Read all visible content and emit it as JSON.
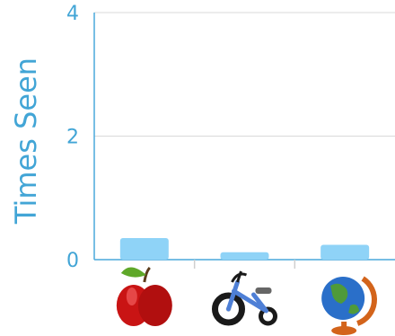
{
  "chart_data": {
    "type": "bar",
    "title": "",
    "xlabel": "",
    "ylabel": "Times Seen",
    "ylim": [
      0,
      4
    ],
    "yticks": [
      0,
      2,
      4
    ],
    "categories": [
      "apple",
      "tricycle",
      "globe"
    ],
    "values": [
      0.35,
      0.12,
      0.24
    ],
    "bar_color": "#8fd3f7",
    "axis_color": "#4aa9db",
    "grid_color": "#d9d9d9",
    "grid": true,
    "category_icons": [
      "apple-icon",
      "tricycle-icon",
      "globe-icon"
    ]
  }
}
